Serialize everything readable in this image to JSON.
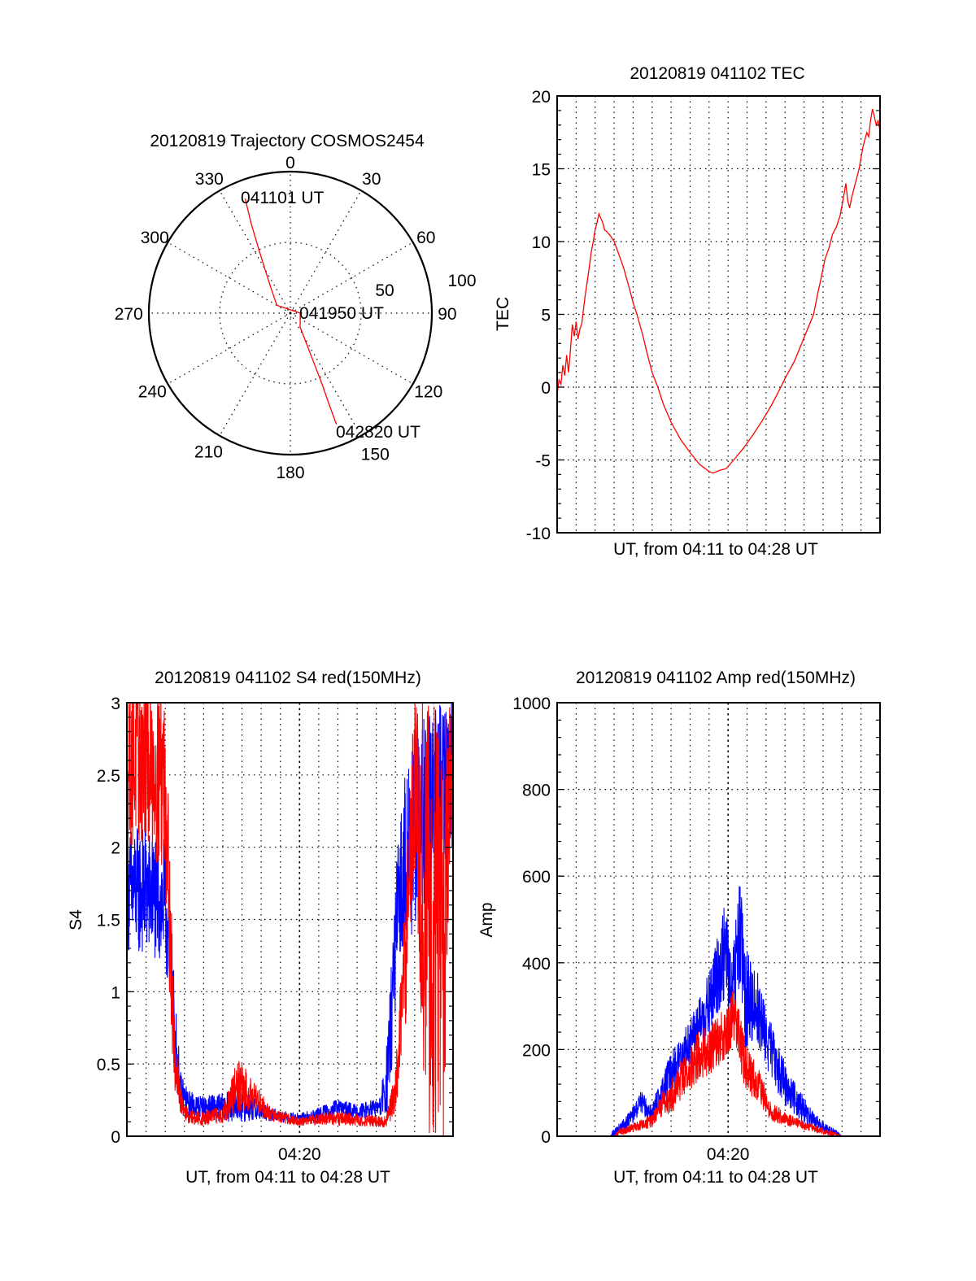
{
  "figure": {
    "polar_title": "20120819 Trajectory COSMOS2454",
    "tec_title": "20120819 041102 TEC",
    "s4_title": "20120819 041102 S4 red(150MHz)",
    "amp_title": "20120819 041102 Amp red(150MHz)"
  },
  "colors": {
    "red": "#ff0000",
    "blue": "#0000ff",
    "axis": "#000000"
  },
  "chart_data": [
    {
      "type": "polar",
      "title": "20120819 Trajectory COSMOS2454",
      "azimuth_labels": [
        "0",
        "30",
        "60",
        "90",
        "120",
        "150",
        "180",
        "210",
        "240",
        "270",
        "300",
        "330"
      ],
      "azimuth_values": [
        0,
        30,
        60,
        90,
        120,
        150,
        180,
        210,
        240,
        270,
        300,
        330
      ],
      "radial_labels": [
        "50",
        "100"
      ],
      "radial_values": [
        50,
        100
      ],
      "rlim": [
        0,
        100
      ],
      "grid": true,
      "series": [
        {
          "name": "trajectory",
          "color": "red",
          "points_az_r": [
            [
              338.5,
              87
            ],
            [
              336.5,
              70
            ],
            [
              334,
              52
            ],
            [
              330,
              36
            ],
            [
              322,
              22
            ],
            [
              300,
              11
            ],
            [
              90,
              7
            ],
            [
              145,
              12
            ],
            [
              153,
              28
            ],
            [
              155,
              42
            ],
            [
              156,
              56
            ],
            [
              157,
              70
            ],
            [
              157.5,
              85
            ]
          ]
        }
      ],
      "annotations": [
        {
          "text": "041101 UT",
          "at_az_r": [
            338.5,
            87
          ]
        },
        {
          "text": "041950 UT",
          "at_az_r": [
            90,
            7
          ]
        },
        {
          "text": "042820 UT",
          "at_az_r": [
            157.5,
            85
          ]
        }
      ]
    },
    {
      "type": "line",
      "title": "20120819 041102 TEC",
      "xlabel": "UT, from 04:11 to 04:28 UT",
      "ylabel": "TEC",
      "x_units": "minutes after 04:11 UT",
      "xlim": [
        0,
        17
      ],
      "ylim": [
        -10,
        20
      ],
      "yticks": [
        -10,
        -5,
        0,
        5,
        10,
        15,
        20
      ],
      "ytick_labels": [
        "-10",
        "-5",
        "0",
        "5",
        "10",
        "15",
        "20"
      ],
      "x_grid_step": 1,
      "grid": true,
      "series": [
        {
          "name": "TEC",
          "color": "red",
          "x": [
            0,
            0.1,
            0.2,
            0.3,
            0.4,
            0.5,
            0.6,
            0.7,
            0.8,
            0.9,
            1.0,
            1.1,
            1.2,
            1.3,
            1.4,
            1.5,
            1.6,
            1.7,
            1.8,
            1.9,
            2.0,
            2.1,
            2.2,
            2.3,
            2.4,
            2.5,
            2.6,
            2.8,
            3.0,
            3.2,
            3.5,
            3.8,
            4.0,
            4.2,
            4.5,
            4.8,
            5.0,
            5.3,
            5.6,
            6.0,
            6.5,
            7.0,
            7.5,
            8.0,
            8.2,
            8.6,
            8.9,
            9.3,
            9.8,
            10.3,
            10.8,
            11.3,
            11.7,
            12.0,
            12.5,
            13.0,
            13.5,
            13.7,
            13.9,
            14.1,
            14.3,
            14.5,
            14.7,
            14.9,
            15.1,
            15.2,
            15.3,
            15.4,
            15.5,
            15.7,
            15.9,
            16.1,
            16.3,
            16.4,
            16.5,
            16.6,
            16.7,
            16.8,
            16.9,
            17.0
          ],
          "y": [
            -0.5,
            0.5,
            0.2,
            1.5,
            0.8,
            2.2,
            1.0,
            2.5,
            4.3,
            3.5,
            4.5,
            3.3,
            4.0,
            4.4,
            5.5,
            6.5,
            7.4,
            8.3,
            9.3,
            10.0,
            10.8,
            11.3,
            11.9,
            11.6,
            11.3,
            10.8,
            10.7,
            10.4,
            10.0,
            9.3,
            8.2,
            6.8,
            5.8,
            5.0,
            3.6,
            2.0,
            1.0,
            0.0,
            -1.2,
            -2.4,
            -3.6,
            -4.5,
            -5.3,
            -5.8,
            -5.9,
            -5.7,
            -5.6,
            -5.0,
            -4.2,
            -3.3,
            -2.3,
            -1.2,
            -0.2,
            0.6,
            1.8,
            3.4,
            5.0,
            6.3,
            7.5,
            8.8,
            9.5,
            10.5,
            11.0,
            11.8,
            13.2,
            14.0,
            12.8,
            12.3,
            13.0,
            14.0,
            15.0,
            16.5,
            17.5,
            17.2,
            18.3,
            19.1,
            18.6,
            18.0,
            18.3,
            17.6
          ]
        }
      ]
    },
    {
      "type": "line",
      "title": "20120819 041102 S4 red(150MHz)",
      "xlabel": "UT, from 04:11 to 04:28 UT",
      "ylabel": "S4",
      "x_units": "minutes after 04:11 UT",
      "xlim": [
        0,
        17
      ],
      "ylim": [
        0,
        3
      ],
      "yticks": [
        0,
        0.5,
        1,
        1.5,
        2,
        2.5,
        3
      ],
      "ytick_labels": [
        "0",
        "0.5",
        "1",
        "1.5",
        "2",
        "2.5",
        "3"
      ],
      "xticks": [
        9
      ],
      "xtick_labels": [
        "04:20"
      ],
      "x_grid_step": 1,
      "grid": true,
      "series": [
        {
          "name": "S4 blue",
          "color": "blue",
          "envelope_t_mean_spread": [
            [
              0,
              1.7,
              0.45
            ],
            [
              1.0,
              1.7,
              0.45
            ],
            [
              2.0,
              1.6,
              0.45
            ],
            [
              2.3,
              1.2,
              0.35
            ],
            [
              2.5,
              0.7,
              0.3
            ],
            [
              2.8,
              0.3,
              0.15
            ],
            [
              3.2,
              0.22,
              0.1
            ],
            [
              4.0,
              0.2,
              0.08
            ],
            [
              5.0,
              0.2,
              0.1
            ],
            [
              6.0,
              0.22,
              0.12
            ],
            [
              7.0,
              0.17,
              0.06
            ],
            [
              8.0,
              0.14,
              0.04
            ],
            [
              9.0,
              0.12,
              0.04
            ],
            [
              10.0,
              0.15,
              0.05
            ],
            [
              11.0,
              0.2,
              0.06
            ],
            [
              12.0,
              0.17,
              0.05
            ],
            [
              13.2,
              0.2,
              0.07
            ],
            [
              13.6,
              0.4,
              0.3
            ],
            [
              14.0,
              1.3,
              0.5
            ],
            [
              14.4,
              1.9,
              0.6
            ],
            [
              15.5,
              2.2,
              0.7
            ],
            [
              16.5,
              2.5,
              0.6
            ],
            [
              17.0,
              2.5,
              0.6
            ]
          ]
        },
        {
          "name": "S4 red",
          "color": "red",
          "envelope_t_mean_spread": [
            [
              0,
              2.6,
              0.6
            ],
            [
              1.0,
              2.6,
              0.6
            ],
            [
              2.0,
              2.5,
              0.7
            ],
            [
              2.3,
              1.2,
              0.5
            ],
            [
              2.5,
              0.5,
              0.2
            ],
            [
              2.8,
              0.25,
              0.1
            ],
            [
              3.2,
              0.13,
              0.05
            ],
            [
              4.0,
              0.12,
              0.05
            ],
            [
              5.0,
              0.15,
              0.06
            ],
            [
              5.8,
              0.35,
              0.2
            ],
            [
              6.5,
              0.3,
              0.12
            ],
            [
              7.5,
              0.15,
              0.05
            ],
            [
              9.0,
              0.1,
              0.03
            ],
            [
              10.0,
              0.12,
              0.04
            ],
            [
              11.0,
              0.13,
              0.06
            ],
            [
              12.0,
              0.11,
              0.04
            ],
            [
              13.5,
              0.1,
              0.04
            ],
            [
              14.0,
              0.3,
              0.15
            ],
            [
              14.5,
              1.2,
              0.5
            ],
            [
              15.0,
              2.5,
              0.6
            ],
            [
              15.6,
              1.5,
              1.5
            ],
            [
              16.5,
              1.5,
              1.5
            ],
            [
              17.0,
              2.6,
              0.4
            ]
          ]
        }
      ]
    },
    {
      "type": "line",
      "title": "20120819 041102 Amp red(150MHz)",
      "xlabel": "UT, from 04:11 to 04:28 UT",
      "ylabel": "Amp",
      "x_units": "minutes after 04:11 UT",
      "xlim": [
        0,
        17
      ],
      "ylim": [
        0,
        1000
      ],
      "yticks": [
        0,
        200,
        400,
        600,
        800,
        1000
      ],
      "ytick_labels": [
        "0",
        "200",
        "400",
        "600",
        "800",
        "1000"
      ],
      "xticks": [
        9
      ],
      "xtick_labels": [
        "04:20"
      ],
      "x_grid_step": 1,
      "grid": true,
      "series": [
        {
          "name": "Amp blue",
          "color": "blue",
          "envelope_t_mean_spread": [
            [
              0,
              0,
              0
            ],
            [
              2.8,
              0,
              0
            ],
            [
              3.0,
              10,
              10
            ],
            [
              3.5,
              25,
              15
            ],
            [
              4.0,
              50,
              20
            ],
            [
              4.4,
              80,
              25
            ],
            [
              5.0,
              50,
              25
            ],
            [
              5.5,
              100,
              40
            ],
            [
              6.0,
              150,
              45
            ],
            [
              6.5,
              180,
              50
            ],
            [
              7.0,
              220,
              55
            ],
            [
              7.5,
              260,
              60
            ],
            [
              8.0,
              300,
              80
            ],
            [
              8.5,
              380,
              100
            ],
            [
              8.9,
              430,
              120
            ],
            [
              9.2,
              300,
              100
            ],
            [
              9.6,
              470,
              150
            ],
            [
              9.9,
              320,
              120
            ],
            [
              10.5,
              300,
              90
            ],
            [
              11.0,
              230,
              70
            ],
            [
              11.5,
              170,
              60
            ],
            [
              12.0,
              120,
              50
            ],
            [
              12.5,
              90,
              40
            ],
            [
              13.0,
              60,
              30
            ],
            [
              13.5,
              35,
              20
            ],
            [
              14.0,
              20,
              15
            ],
            [
              14.5,
              10,
              10
            ],
            [
              14.8,
              5,
              5
            ],
            [
              15.0,
              0,
              0
            ],
            [
              17.0,
              0,
              0
            ]
          ]
        },
        {
          "name": "Amp red",
          "color": "red",
          "envelope_t_mean_spread": [
            [
              0,
              0,
              0
            ],
            [
              3.0,
              0,
              0
            ],
            [
              3.3,
              10,
              8
            ],
            [
              4.0,
              20,
              10
            ],
            [
              5.0,
              35,
              15
            ],
            [
              5.6,
              80,
              30
            ],
            [
              6.0,
              90,
              40
            ],
            [
              6.5,
              130,
              50
            ],
            [
              7.0,
              150,
              50
            ],
            [
              7.5,
              190,
              60
            ],
            [
              8.0,
              200,
              60
            ],
            [
              8.5,
              220,
              60
            ],
            [
              9.0,
              250,
              70
            ],
            [
              9.4,
              280,
              70
            ],
            [
              9.8,
              180,
              60
            ],
            [
              10.2,
              140,
              50
            ],
            [
              10.7,
              110,
              40
            ],
            [
              11.2,
              60,
              25
            ],
            [
              12.0,
              40,
              15
            ],
            [
              13.0,
              25,
              10
            ],
            [
              14.0,
              12,
              8
            ],
            [
              14.6,
              5,
              5
            ],
            [
              15.0,
              0,
              0
            ],
            [
              17.0,
              0,
              0
            ]
          ]
        }
      ]
    }
  ]
}
